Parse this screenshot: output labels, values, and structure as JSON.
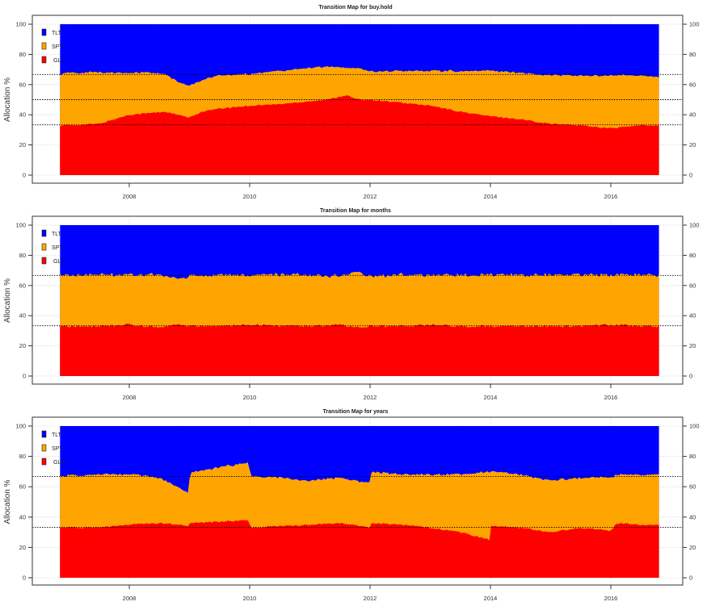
{
  "colors": {
    "TLT": "#0000FF",
    "SPY": "#FFA500",
    "GLD": "#FF0000",
    "frame": "#555555",
    "grid": "#D3D3D3",
    "reference_line": "#000000"
  },
  "axis": {
    "ylabel": "Allocation %",
    "yticks": [
      0,
      20,
      40,
      60,
      80,
      100
    ],
    "xticks": [
      "2008",
      "2010",
      "2012",
      "2014",
      "2016"
    ]
  },
  "legend": [
    "TLT",
    "SPY",
    "GLD"
  ],
  "chart_data": [
    {
      "type": "area",
      "stacked": true,
      "title": "Transition Map for buy.hold",
      "xlabel": "",
      "ylabel": "Allocation %",
      "ylim": [
        0,
        100
      ],
      "xlim": [
        2006.85,
        2016.8
      ],
      "grid": true,
      "legend_position": "top-left",
      "reference_lines": [
        33.3,
        50,
        66.7
      ],
      "x": [
        2006.85,
        2007.0,
        2007.5,
        2008.0,
        2008.3,
        2008.6,
        2008.8,
        2009.0,
        2009.2,
        2009.5,
        2010.0,
        2010.5,
        2011.0,
        2011.3,
        2011.6,
        2011.8,
        2012.0,
        2012.5,
        2013.0,
        2013.5,
        2014.0,
        2014.5,
        2015.0,
        2015.5,
        2016.0,
        2016.5,
        2016.8
      ],
      "series": [
        {
          "name": "GLD",
          "values": [
            33,
            33,
            34,
            40,
            41,
            42,
            40,
            38,
            42,
            44,
            46,
            47,
            49,
            50,
            53,
            50,
            50,
            48,
            46,
            42,
            39,
            37,
            34,
            33,
            31,
            33,
            33
          ]
        },
        {
          "name": "SPY",
          "values": [
            34,
            35,
            34,
            28,
            27,
            25,
            22,
            21,
            21,
            22,
            21,
            22,
            22,
            22,
            18,
            21,
            19,
            21,
            23,
            27,
            30,
            31,
            32,
            33,
            35,
            33,
            32
          ]
        },
        {
          "name": "TLT",
          "values": [
            33,
            32,
            32,
            32,
            32,
            33,
            38,
            41,
            37,
            34,
            33,
            31,
            29,
            28,
            29,
            29,
            31,
            31,
            31,
            31,
            31,
            32,
            34,
            34,
            34,
            34,
            35
          ]
        }
      ]
    },
    {
      "type": "area",
      "stacked": true,
      "title": "Transition Map for months",
      "xlabel": "",
      "ylabel": "Allocation %",
      "ylim": [
        0,
        100
      ],
      "xlim": [
        2006.85,
        2016.8
      ],
      "grid": true,
      "legend_position": "top-left",
      "reference_lines": [
        33.3,
        66.7
      ],
      "x": [
        2006.85,
        2007.5,
        2008.0,
        2008.5,
        2008.8,
        2009.0,
        2009.5,
        2010.0,
        2010.5,
        2011.0,
        2011.5,
        2011.8,
        2012.0,
        2012.5,
        2013.0,
        2013.5,
        2014.0,
        2014.5,
        2015.0,
        2015.5,
        2016.0,
        2016.5,
        2016.8
      ],
      "series": [
        {
          "name": "GLD",
          "values": [
            33,
            33,
            34,
            32,
            34,
            33,
            33,
            34,
            33,
            33,
            34,
            32,
            33,
            33,
            34,
            33,
            33,
            33,
            33,
            33,
            34,
            33,
            33
          ]
        },
        {
          "name": "SPY",
          "values": [
            34,
            34,
            33,
            35,
            30,
            33,
            34,
            33,
            34,
            34,
            32,
            37,
            33,
            34,
            33,
            34,
            34,
            34,
            34,
            34,
            33,
            34,
            34
          ]
        },
        {
          "name": "TLT",
          "values": [
            33,
            33,
            33,
            33,
            36,
            34,
            33,
            33,
            33,
            33,
            34,
            31,
            34,
            33,
            33,
            33,
            33,
            33,
            33,
            33,
            33,
            33,
            33
          ]
        }
      ]
    },
    {
      "type": "area",
      "stacked": true,
      "title": "Transition Map for years",
      "xlabel": "",
      "ylabel": "Allocation %",
      "ylim": [
        0,
        100
      ],
      "xlim": [
        2006.85,
        2016.8
      ],
      "grid": true,
      "legend_position": "top-left",
      "reference_lines": [
        33.3,
        66.7
      ],
      "x": [
        2006.85,
        2007.5,
        2008.0,
        2008.5,
        2008.9,
        2008.99,
        2009.01,
        2009.5,
        2009.99,
        2010.01,
        2010.5,
        2011.0,
        2011.5,
        2011.9,
        2011.99,
        2012.01,
        2012.5,
        2013.0,
        2013.5,
        2013.99,
        2014.01,
        2014.5,
        2015.0,
        2015.5,
        2016.0,
        2016.1,
        2016.5,
        2016.8
      ],
      "series": [
        {
          "name": "GLD",
          "values": [
            33,
            33,
            35,
            36,
            35,
            34,
            36,
            37,
            38,
            33,
            34,
            35,
            36,
            34,
            33,
            36,
            35,
            33,
            30,
            25,
            34,
            33,
            30,
            33,
            31,
            36,
            35,
            35
          ]
        },
        {
          "name": "SPY",
          "values": [
            34,
            35,
            33,
            30,
            23,
            22,
            33,
            36,
            38,
            34,
            32,
            29,
            30,
            29,
            30,
            34,
            33,
            35,
            38,
            45,
            36,
            35,
            34,
            33,
            35,
            32,
            33,
            33
          ]
        },
        {
          "name": "TLT",
          "values": [
            33,
            32,
            32,
            34,
            42,
            44,
            31,
            27,
            24,
            33,
            34,
            36,
            34,
            37,
            37,
            30,
            32,
            32,
            32,
            30,
            30,
            32,
            36,
            34,
            34,
            32,
            32,
            32
          ]
        }
      ]
    }
  ]
}
